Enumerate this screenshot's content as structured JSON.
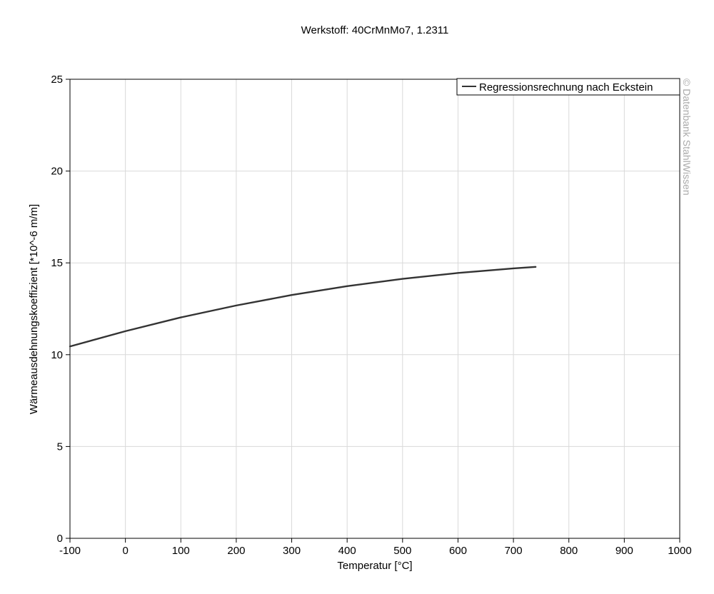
{
  "chart_data": {
    "type": "line",
    "title": "Werkstoff: 40CrMnMo7, 1.2311",
    "xlabel": "Temperatur [°C]",
    "ylabel": "Wärmeausdehnungskoeffizient [*10^-6 m/m]",
    "xlim": [
      -100,
      1000
    ],
    "ylim": [
      0,
      25
    ],
    "xticks": [
      -100,
      0,
      100,
      200,
      300,
      400,
      500,
      600,
      700,
      800,
      900,
      1000
    ],
    "yticks": [
      0,
      5,
      10,
      15,
      20,
      25
    ],
    "xtick_labels": [
      "-100",
      "0",
      "100",
      "200",
      "300",
      "400",
      "500",
      "600",
      "700",
      "800",
      "900",
      "1000"
    ],
    "ytick_labels": [
      "0",
      "5",
      "10",
      "15",
      "20",
      "25"
    ],
    "grid": true,
    "legend_position": "top-right",
    "series": [
      {
        "name": "Regressionsrechnung nach Eckstein",
        "color": "#333333",
        "x": [
          -100,
          0,
          100,
          200,
          300,
          400,
          500,
          600,
          700,
          740
        ],
        "y": [
          10.45,
          11.28,
          12.03,
          12.68,
          13.25,
          13.73,
          14.13,
          14.45,
          14.7,
          14.78
        ]
      }
    ]
  },
  "watermark": "© Datenbank StahlWissen"
}
